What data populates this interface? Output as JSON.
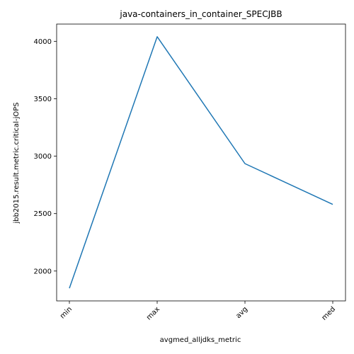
{
  "chart_data": {
    "type": "line",
    "title": "java-containers_in_container_SPECJBB",
    "xlabel": "avgmed_alljdks_metric",
    "ylabel": "jbb2015.result.metric.critical-jOPS",
    "categories": [
      "min",
      "max",
      "avg",
      "med"
    ],
    "series": [
      {
        "values": [
          1850,
          4040,
          2935,
          2580
        ],
        "color": "#1f77b4"
      }
    ],
    "yticks": [
      2000,
      2500,
      3000,
      3500,
      4000
    ],
    "ylim": [
      1740,
      4150
    ],
    "grid": false,
    "legend": "none"
  }
}
